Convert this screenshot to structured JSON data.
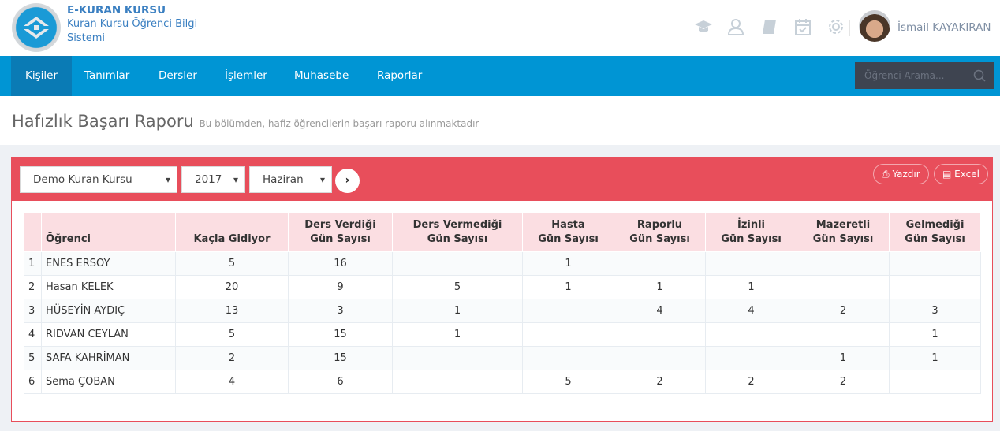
{
  "app": {
    "title": "E-KURAN KURSU",
    "subtitle_line1": "Kuran Kursu Öğrenci Bilgi",
    "subtitle_line2": "Sistemi"
  },
  "header": {
    "icons": [
      "graduation-cap-icon",
      "users-icon",
      "book-icon",
      "calendar-check-icon",
      "gear-icon"
    ],
    "user_name": "İsmail KAYAKIRAN"
  },
  "nav": {
    "items": [
      "Kişiler",
      "Tanımlar",
      "Dersler",
      "İşlemler",
      "Muhasebe",
      "Raporlar"
    ],
    "active": "Kişiler",
    "search_placeholder": "Öğrenci Arama..."
  },
  "page": {
    "title": "Hafızlık Başarı Raporu",
    "subtitle": "Bu bölümden, hafiz öğrencilerin başarı raporu alınmaktadır"
  },
  "filters": {
    "course": "Demo Kuran Kursu",
    "year": "2017",
    "month": "Haziran"
  },
  "actions": {
    "print": "Yazdır",
    "excel": "Excel"
  },
  "colors": {
    "accent": "#0095d4",
    "panel": "#e84e5b"
  },
  "table": {
    "headers": [
      [
        "",
        ""
      ],
      [
        "",
        "Öğrenci"
      ],
      [
        "",
        "Kaçla Gidiyor"
      ],
      [
        "Ders Verdiği",
        "Gün Sayısı"
      ],
      [
        "Ders Vermediği",
        "Gün Sayısı"
      ],
      [
        "Hasta",
        "Gün Sayısı"
      ],
      [
        "Raporlu",
        "Gün Sayısı"
      ],
      [
        "İzinli",
        "Gün Sayısı"
      ],
      [
        "Mazeretli",
        "Gün Sayısı"
      ],
      [
        "Gelmediği",
        "Gün Sayısı"
      ]
    ],
    "rows": [
      [
        "1",
        "ENES ERSOY",
        "5",
        "16",
        "",
        "1",
        "",
        "",
        "",
        ""
      ],
      [
        "2",
        "Hasan KELEK",
        "20",
        "9",
        "5",
        "1",
        "1",
        "1",
        "",
        ""
      ],
      [
        "3",
        "HÜSEYİN AYDIÇ",
        "13",
        "3",
        "1",
        "",
        "4",
        "4",
        "2",
        "3"
      ],
      [
        "4",
        "RIDVAN CEYLAN",
        "5",
        "15",
        "1",
        "",
        "",
        "",
        "",
        "1"
      ],
      [
        "5",
        "SAFA KAHRİMAN",
        "2",
        "15",
        "",
        "",
        "",
        "",
        "1",
        "1"
      ],
      [
        "6",
        "Sema ÇOBAN",
        "4",
        "6",
        "",
        "5",
        "2",
        "2",
        "2",
        ""
      ]
    ]
  }
}
